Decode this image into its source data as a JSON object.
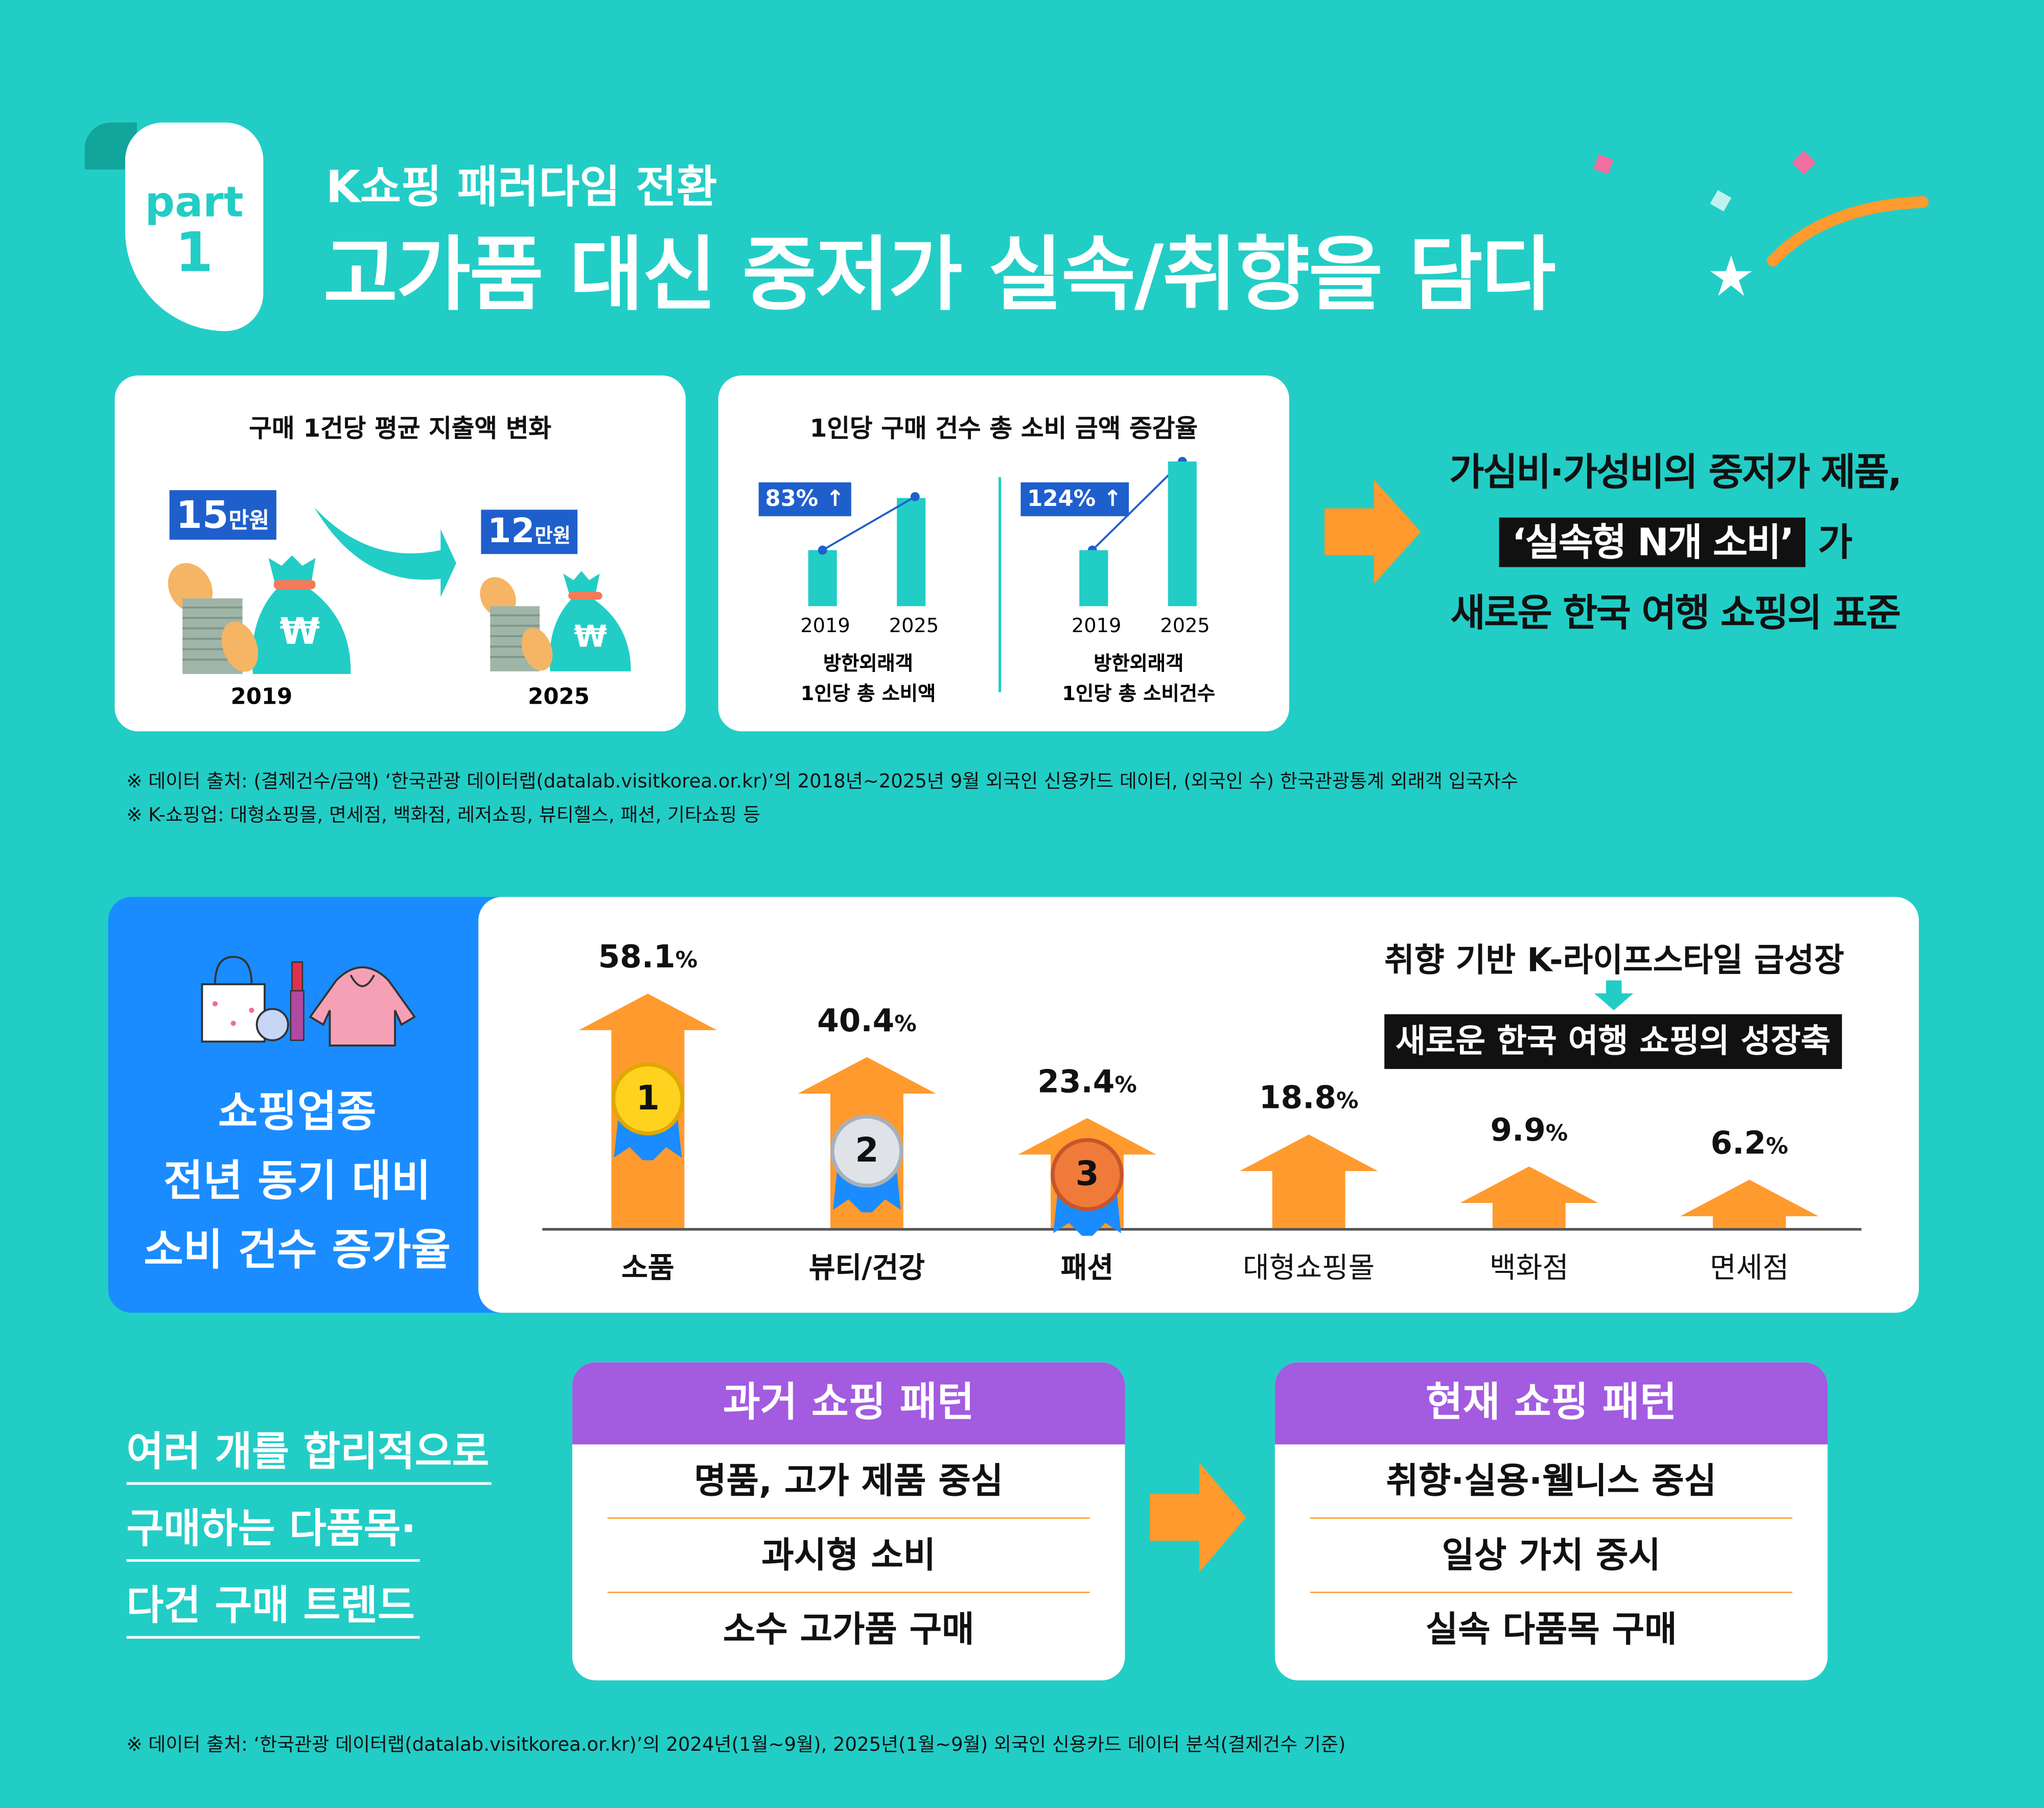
{
  "header": {
    "part_label": "part",
    "part_number": "1",
    "subtitle": "K쇼핑 패러다임 전환",
    "title": "고가품 대신 중저가 실속/취향을 담다"
  },
  "card_spend": {
    "title": "구매 1건당 평균 지출액 변화",
    "before_amount": "15",
    "before_unit": "만원",
    "after_amount": "12",
    "after_unit": "만원",
    "before_year": "2019",
    "after_year": "2025",
    "icon": "money-bag-icon"
  },
  "card_growth": {
    "title": "1인당 구매 건수 총 소비 금액 증감율",
    "charts": [
      {
        "rate": "83%",
        "x": [
          "2019",
          "2025"
        ],
        "label_line1": "방한외래객",
        "label_line2": "1인당 총 소비액"
      },
      {
        "rate": "124%",
        "x": [
          "2019",
          "2025"
        ],
        "label_line1": "방한외래객",
        "label_line2": "1인당 총 소비건수"
      }
    ]
  },
  "headline": {
    "line1": "가심비·가성비의 중저가 제품,",
    "highlight": "‘실속형 N개 소비’",
    "line2_suffix": "가",
    "line3": "새로운 한국 여행 쇼핑의 표준"
  },
  "notes_top": [
    "※ 데이터 출처: (결제건수/금액) ‘한국관광 데이터랩(datalab.visitkorea.or.kr)’의 2018년~2025년 9월 외국인 신용카드 데이터, (외국인 수) 한국관광통계 외래객 입국자수",
    "※ K-쇼핑업: 대형쇼핑몰, 면세점, 백화점, 레저쇼핑, 뷰티헬스, 패션, 기타쇼핑 등"
  ],
  "side_panel": {
    "lines": [
      "쇼핑업종",
      "전년 동기 대비",
      "소비 건수 증가율"
    ],
    "icons": [
      "shopping-bag-icon",
      "lipstick-icon",
      "hoodie-icon"
    ]
  },
  "callout": {
    "top": "취향 기반 K-라이프스타일 급성장",
    "box": "새로운 한국 여행 쇼핑의 성장축"
  },
  "chart_data": {
    "type": "bar",
    "categories": [
      "소품",
      "뷰티/건강",
      "패션",
      "대형쇼핑몰",
      "백화점",
      "면세점"
    ],
    "values": [
      58.1,
      40.4,
      23.4,
      18.8,
      9.9,
      6.2
    ],
    "value_labels": [
      "58.1",
      "40.4",
      "23.4",
      "18.8",
      "9.9",
      "6.2"
    ],
    "unit": "%",
    "ranks": [
      "1",
      "2",
      "3"
    ],
    "mark": "up-arrow",
    "color": "#FF9A2E"
  },
  "trend": {
    "lines": [
      "여러 개를 합리적으로",
      "구매하는 다품목·",
      "다건 구매 트렌드"
    ]
  },
  "patterns": {
    "past": {
      "title": "과거 쇼핑 패턴",
      "items": [
        "명품, 고가 제품 중심",
        "과시형 소비",
        "소수 고가품 구매"
      ]
    },
    "present": {
      "title": "현재 쇼핑 패턴",
      "items": [
        "취향·실용·웰니스 중심",
        "일상 가치 중시",
        "실속 다품목 구매"
      ]
    }
  },
  "note_bottom": "※ 데이터 출처: ‘한국관광 데이터랩(datalab.visitkorea.or.kr)’의 2024년(1월~9월), 2025년(1월~9월) 외국인 신용카드 데이터 분석(결제건수 기준)",
  "colors": {
    "background": "#22CDC6",
    "orange": "#FF9A2E",
    "blue": "#1F5FCC",
    "panel_blue": "#1A8CFF",
    "purple": "#A35BE0"
  }
}
